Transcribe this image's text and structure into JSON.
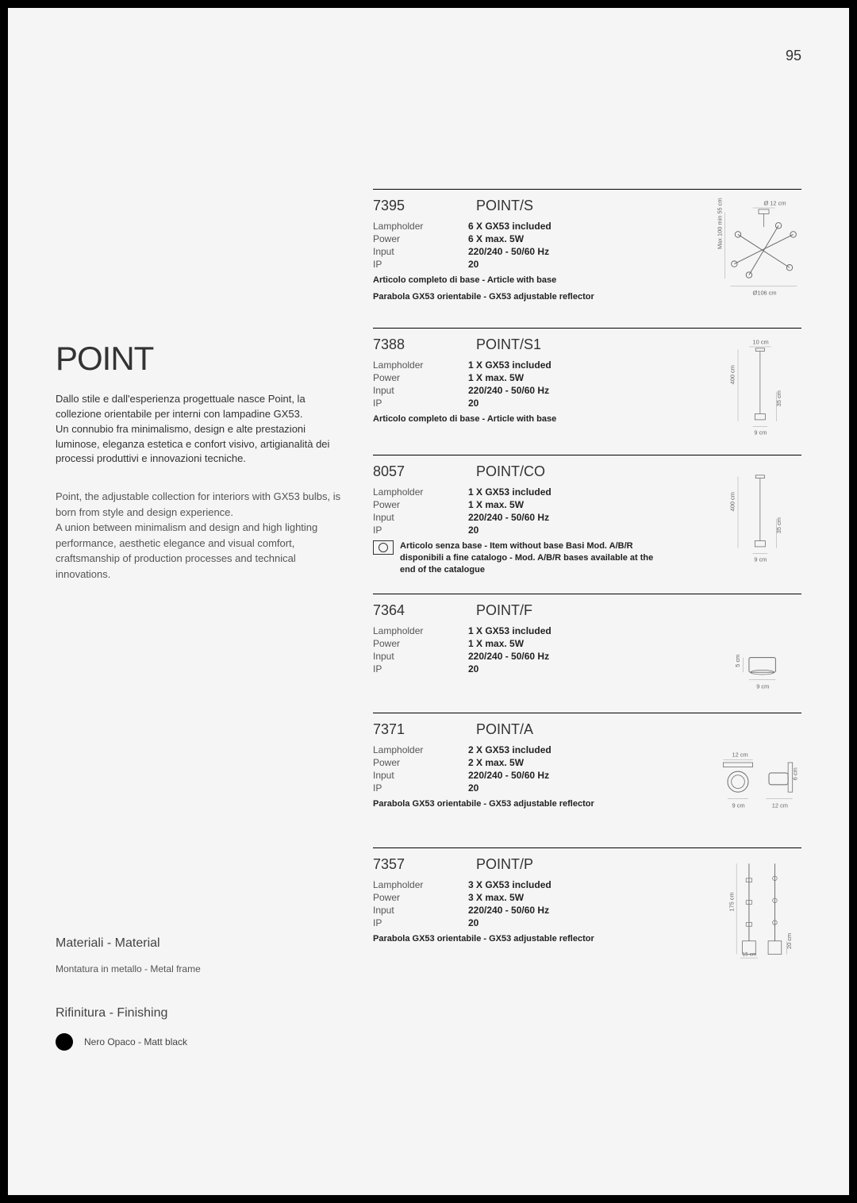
{
  "page_number": "95",
  "collection": {
    "title": "POINT",
    "description_it": "Dallo stile e dall'esperienza progettuale nasce Point, la collezione orientabile per interni con lampadine GX53.\nUn connubio fra minimalismo, design e alte prestazioni luminose, eleganza estetica e confort visivo, artigianalità dei processi produttivi e innovazioni tecniche.",
    "description_en": "Point, the adjustable collection for interiors with GX53 bulbs, is born from style and design experience.\nA union between minimalism and design and high lighting performance, aesthetic elegance and visual comfort, craftsmanship of production processes and technical innovations."
  },
  "materials": {
    "heading": "Materiali - Material",
    "text": "Montatura in metallo - Metal frame"
  },
  "finishing": {
    "heading": "Rifinitura - Finishing",
    "swatches": [
      {
        "color": "#000000",
        "label": "Nero Opaco - Matt black"
      }
    ]
  },
  "spec_labels": {
    "lampholder": "Lampholder",
    "power": "Power",
    "input": "Input",
    "ip": "IP"
  },
  "products": [
    {
      "code": "7395",
      "name": "POINT/S",
      "lampholder": "6 X GX53 included",
      "power": "6 X max. 5W",
      "input": "220/240 - 50/60 Hz",
      "ip": "20",
      "notes": [
        "Articolo completo di base - Article with base",
        "Parabola GX53 orientabile - GX53 adjustable reflector"
      ],
      "diagram": "chandelier",
      "dims": {
        "width": "Ø106 cm",
        "top": "Ø 12 cm",
        "height": "Max 100 min 55 cm"
      }
    },
    {
      "code": "7388",
      "name": "POINT/S1",
      "lampholder": "1 X GX53 included",
      "power": "1 X max. 5W",
      "input": "220/240 - 50/60 Hz",
      "ip": "20",
      "notes": [
        "Articolo completo di base - Article with base"
      ],
      "diagram": "pendant",
      "dims": {
        "width": "9 cm",
        "top": "10 cm",
        "height": "400 cm",
        "head": "35 cm"
      }
    },
    {
      "code": "8057",
      "name": "POINT/CO",
      "lampholder": "1 X GX53 included",
      "power": "1 X max. 5W",
      "input": "220/240 - 50/60 Hz",
      "ip": "20",
      "icon_note": "Articolo senza base - Item without base Basi Mod. A/B/R disponibili a fine catalogo - Mod. A/B/R bases available at the end of the catalogue",
      "diagram": "pendant",
      "dims": {
        "width": "9 cm",
        "height": "400 cm",
        "head": "35 cm"
      }
    },
    {
      "code": "7364",
      "name": "POINT/F",
      "lampholder": "1 X GX53 included",
      "power": "1 X max. 5W",
      "input": "220/240 - 50/60 Hz",
      "ip": "20",
      "diagram": "ceiling",
      "dims": {
        "width": "9 cm",
        "height": "5 cm"
      }
    },
    {
      "code": "7371",
      "name": "POINT/A",
      "lampholder": "2 X GX53 included",
      "power": "2 X max. 5W",
      "input": "220/240 - 50/60 Hz",
      "ip": "20",
      "notes": [
        "Parabola GX53 orientabile - GX53 adjustable reflector"
      ],
      "diagram": "wall",
      "dims": {
        "width": "9 cm",
        "top": "12 cm",
        "height": "6 cm",
        "side": "12 cm"
      }
    },
    {
      "code": "7357",
      "name": "POINT/P",
      "lampholder": "3 X GX53 included",
      "power": "3 X max. 5W",
      "input": "220/240 - 50/60 Hz",
      "ip": "20",
      "notes": [
        "Parabola GX53 orientabile - GX53 adjustable reflector"
      ],
      "diagram": "floor",
      "dims": {
        "width": "15 cm",
        "height": "175 cm",
        "base": "20 cm"
      }
    }
  ]
}
